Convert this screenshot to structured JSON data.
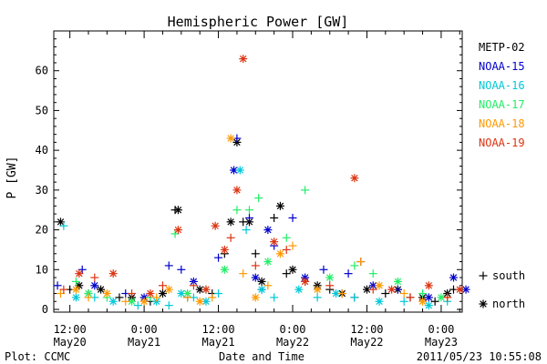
{
  "chart_data": {
    "type": "scatter",
    "title": "Hemispheric Power [GW]",
    "ylabel": "P [GW]",
    "xlabel": "Date and Time",
    "ylim": [
      0,
      70
    ],
    "yticks": [
      0,
      10,
      20,
      30,
      40,
      50,
      60
    ],
    "xlim": [
      -2.6,
      63.4
    ],
    "xticks": [
      {
        "x": 0,
        "top": "12:00",
        "bottom": "May20"
      },
      {
        "x": 12,
        "top": "0:00",
        "bottom": "May21"
      },
      {
        "x": 24,
        "top": "12:00",
        "bottom": "May21"
      },
      {
        "x": 36,
        "top": "0:00",
        "bottom": "May22"
      },
      {
        "x": 48,
        "top": "12:00",
        "bottom": "May22"
      },
      {
        "x": 60,
        "top": "0:00",
        "bottom": "May23"
      }
    ],
    "x_unit": "hours since 2011-05-20 12:00 UT",
    "legend_position": "right",
    "marker_legend": [
      {
        "symbol": "+",
        "label": "south"
      },
      {
        "symbol": "*",
        "label": "north"
      }
    ],
    "series": [
      {
        "name": "METP-02",
        "color": "#000000",
        "points": [
          [
            -1.5,
            22,
            "*"
          ],
          [
            0,
            5,
            "+"
          ],
          [
            1.5,
            6,
            "*"
          ],
          [
            3,
            4,
            "+"
          ],
          [
            5,
            5,
            "*"
          ],
          [
            8,
            3,
            "+"
          ],
          [
            10,
            3,
            "*"
          ],
          [
            13,
            2,
            "+"
          ],
          [
            15,
            4,
            "*"
          ],
          [
            17,
            25,
            "+"
          ],
          [
            17.5,
            25,
            "*"
          ],
          [
            19,
            3,
            "+"
          ],
          [
            21,
            5,
            "*"
          ],
          [
            23,
            4,
            "+"
          ],
          [
            25,
            14,
            "+"
          ],
          [
            26,
            22,
            "*"
          ],
          [
            27,
            42,
            "*"
          ],
          [
            28,
            22,
            "+"
          ],
          [
            29,
            22,
            "*"
          ],
          [
            30,
            14,
            "+"
          ],
          [
            31,
            7,
            "*"
          ],
          [
            33,
            23,
            "+"
          ],
          [
            34,
            26,
            "*"
          ],
          [
            35,
            9,
            "+"
          ],
          [
            36,
            10,
            "*"
          ],
          [
            38,
            7,
            "+"
          ],
          [
            40,
            6,
            "*"
          ],
          [
            42,
            5,
            "+"
          ],
          [
            44,
            4,
            "*"
          ],
          [
            46,
            3,
            "+"
          ],
          [
            48,
            5,
            "*"
          ],
          [
            51,
            4,
            "+"
          ],
          [
            53,
            5,
            "*"
          ],
          [
            55,
            3,
            "+"
          ],
          [
            57,
            3,
            "*"
          ],
          [
            59,
            2,
            "+"
          ],
          [
            61,
            4,
            "*"
          ],
          [
            62,
            5,
            "+"
          ]
        ]
      },
      {
        "name": "NOAA-15",
        "color": "#0000cc",
        "points": [
          [
            -2,
            6,
            "+"
          ],
          [
            2,
            10,
            "+"
          ],
          [
            4,
            6,
            "*"
          ],
          [
            9,
            4,
            "+"
          ],
          [
            12,
            3,
            "*"
          ],
          [
            16,
            11,
            "+"
          ],
          [
            18,
            10,
            "+"
          ],
          [
            20,
            7,
            "*"
          ],
          [
            24,
            13,
            "+"
          ],
          [
            26.5,
            35,
            "*"
          ],
          [
            27,
            43,
            "+"
          ],
          [
            29,
            23,
            "+"
          ],
          [
            30,
            8,
            "*"
          ],
          [
            31,
            5,
            "+"
          ],
          [
            32,
            20,
            "*"
          ],
          [
            33,
            16,
            "+"
          ],
          [
            36,
            23,
            "+"
          ],
          [
            38,
            8,
            "*"
          ],
          [
            41,
            10,
            "+"
          ],
          [
            45,
            9,
            "+"
          ],
          [
            47,
            12,
            "+"
          ],
          [
            49,
            6,
            "*"
          ],
          [
            53,
            5,
            "+"
          ],
          [
            58,
            3,
            "*"
          ],
          [
            62,
            8,
            "*"
          ],
          [
            64,
            5,
            "*"
          ]
        ]
      },
      {
        "name": "NOAA-16",
        "color": "#00c8d8",
        "points": [
          [
            -1,
            21,
            "+"
          ],
          [
            1,
            3,
            "*"
          ],
          [
            4,
            3,
            "+"
          ],
          [
            7,
            2,
            "*"
          ],
          [
            11,
            1,
            "+"
          ],
          [
            14,
            2,
            "*"
          ],
          [
            16,
            1,
            "+"
          ],
          [
            18,
            4,
            "*"
          ],
          [
            20,
            3,
            "+"
          ],
          [
            22,
            2,
            "*"
          ],
          [
            24,
            4,
            "+"
          ],
          [
            27.5,
            35,
            "*"
          ],
          [
            28.5,
            20,
            "+"
          ],
          [
            31,
            5,
            "*"
          ],
          [
            33,
            3,
            "+"
          ],
          [
            37,
            5,
            "*"
          ],
          [
            40,
            3,
            "+"
          ],
          [
            43,
            4,
            "*"
          ],
          [
            46,
            3,
            "+"
          ],
          [
            50,
            2,
            "*"
          ],
          [
            54,
            2,
            "+"
          ],
          [
            58,
            1,
            "*"
          ],
          [
            61,
            2,
            "+"
          ]
        ]
      },
      {
        "name": "NOAA-17",
        "color": "#22ee66",
        "points": [
          [
            1,
            7,
            "+"
          ],
          [
            3,
            4,
            "*"
          ],
          [
            6,
            3,
            "+"
          ],
          [
            10,
            2,
            "*"
          ],
          [
            13,
            3,
            "+"
          ],
          [
            17,
            19,
            "+"
          ],
          [
            19,
            4,
            "*"
          ],
          [
            22,
            5,
            "+"
          ],
          [
            25,
            10,
            "*"
          ],
          [
            27,
            25,
            "+"
          ],
          [
            29,
            25,
            "+"
          ],
          [
            30.5,
            28,
            "+"
          ],
          [
            32,
            12,
            "*"
          ],
          [
            35,
            18,
            "+"
          ],
          [
            38,
            30,
            "+"
          ],
          [
            42,
            8,
            "*"
          ],
          [
            46,
            11,
            "+"
          ],
          [
            49,
            9,
            "+"
          ],
          [
            53,
            7,
            "*"
          ],
          [
            57,
            4,
            "+"
          ],
          [
            60,
            3,
            "*"
          ]
        ]
      },
      {
        "name": "NOAA-18",
        "color": "#ff9900",
        "points": [
          [
            -1.5,
            4,
            "+"
          ],
          [
            1,
            5,
            "*"
          ],
          [
            3,
            3,
            "+"
          ],
          [
            6,
            4,
            "*"
          ],
          [
            9,
            2,
            "+"
          ],
          [
            12,
            2,
            "*"
          ],
          [
            14,
            3,
            "+"
          ],
          [
            16,
            5,
            "*"
          ],
          [
            19,
            3,
            "+"
          ],
          [
            21,
            2,
            "*"
          ],
          [
            23,
            3,
            "+"
          ],
          [
            26,
            43,
            "*"
          ],
          [
            28,
            9,
            "+"
          ],
          [
            30,
            3,
            "*"
          ],
          [
            32,
            6,
            "+"
          ],
          [
            34,
            14,
            "*"
          ],
          [
            36,
            16,
            "+"
          ],
          [
            40,
            5,
            "*"
          ],
          [
            44,
            4,
            "+"
          ],
          [
            47,
            12,
            "+"
          ],
          [
            50,
            6,
            "*"
          ],
          [
            54,
            4,
            "+"
          ],
          [
            57,
            2,
            "*"
          ],
          [
            61,
            3,
            "+"
          ]
        ]
      },
      {
        "name": "NOAA-19",
        "color": "#dd3311",
        "points": [
          [
            -1,
            5,
            "+"
          ],
          [
            1.5,
            9,
            "*"
          ],
          [
            4,
            8,
            "+"
          ],
          [
            7,
            9,
            "*"
          ],
          [
            10,
            4,
            "+"
          ],
          [
            13,
            4,
            "*"
          ],
          [
            15,
            6,
            "+"
          ],
          [
            17.5,
            20,
            "*"
          ],
          [
            20,
            6,
            "+"
          ],
          [
            22,
            5,
            "*"
          ],
          [
            23.5,
            21,
            "*"
          ],
          [
            25,
            15,
            "*"
          ],
          [
            26,
            18,
            "+"
          ],
          [
            27,
            30,
            "*"
          ],
          [
            28,
            63,
            "*"
          ],
          [
            30,
            11,
            "+"
          ],
          [
            33,
            17,
            "*"
          ],
          [
            35,
            15,
            "+"
          ],
          [
            38,
            7,
            "*"
          ],
          [
            42,
            6,
            "+"
          ],
          [
            46,
            33,
            "*"
          ],
          [
            49,
            5,
            "+"
          ],
          [
            52,
            5,
            "*"
          ],
          [
            55,
            3,
            "+"
          ],
          [
            58,
            6,
            "*"
          ],
          [
            61,
            3,
            "+"
          ],
          [
            63,
            5,
            "*"
          ]
        ]
      }
    ]
  },
  "footer": {
    "left": "Plot: CCMC",
    "center": "Date and Time",
    "right": "2011/05/23  10:55:08"
  }
}
